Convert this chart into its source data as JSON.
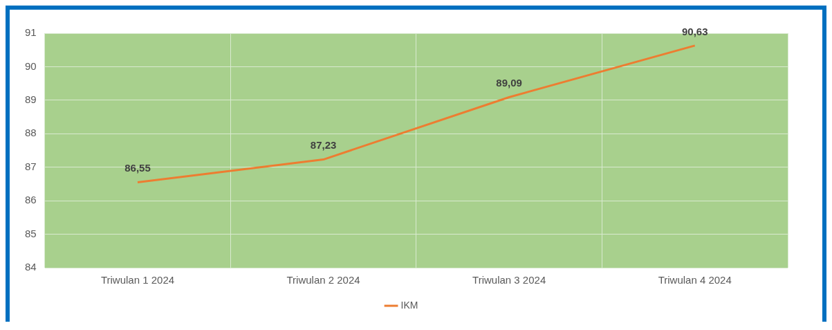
{
  "chart_data": {
    "type": "line",
    "categories": [
      "Triwulan 1 2024",
      "Triwulan 2 2024",
      "Triwulan 3 2024",
      "Triwulan 4 2024"
    ],
    "series": [
      {
        "name": "IKM",
        "color": "#ed7d31",
        "values": [
          86.55,
          87.23,
          89.09,
          90.63
        ],
        "value_labels": [
          "86,55",
          "87,23",
          "89,09",
          "90,63"
        ]
      }
    ],
    "ylim": [
      84,
      91
    ],
    "yticks": [
      84,
      85,
      86,
      87,
      88,
      89,
      90,
      91
    ],
    "grid": true,
    "legend": "bottom",
    "marker": "none",
    "line_style": "solid"
  }
}
